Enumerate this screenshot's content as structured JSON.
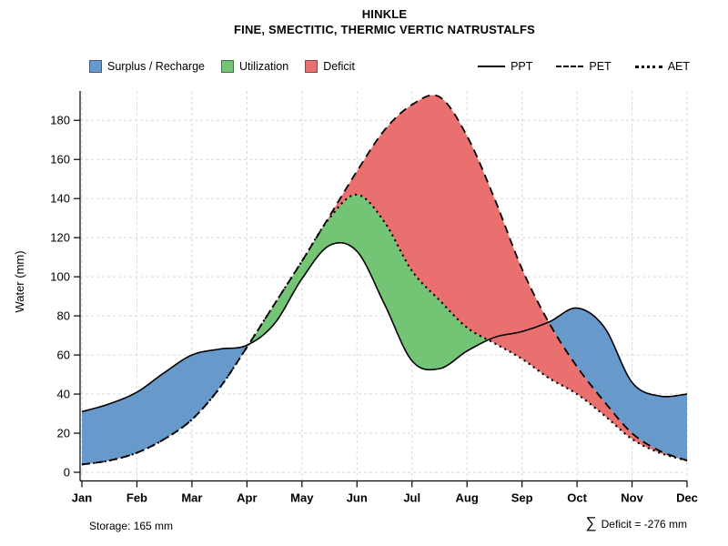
{
  "header": {
    "title": "HINKLE",
    "subtitle": "FINE, SMECTITIC, THERMIC VERTIC NATRUSTALFS"
  },
  "footer": {
    "storage": "Storage: 165 mm",
    "deficit_sigma": "∑",
    "deficit_text": "Deficit = -276 mm"
  },
  "chart_data": {
    "type": "area",
    "title": "HINKLE",
    "subtitle": "FINE, SMECTITIC, THERMIC VERTIC NATRUSTALFS",
    "ylabel": "Water (mm)",
    "ylim": [
      0,
      195
    ],
    "yticks": [
      0,
      20,
      40,
      60,
      80,
      100,
      120,
      140,
      160,
      180
    ],
    "months": [
      "Jan",
      "Feb",
      "Mar",
      "Apr",
      "May",
      "Jun",
      "Jul",
      "Aug",
      "Sep",
      "Oct",
      "Nov",
      "Dec"
    ],
    "x_months": [
      0,
      0.5,
      1,
      1.5,
      2,
      2.5,
      3,
      3.5,
      4,
      4.5,
      5,
      5.5,
      6,
      6.5,
      7,
      7.5,
      8,
      8.5,
      9,
      9.5,
      10,
      10.5,
      11
    ],
    "series": [
      {
        "name": "PPT",
        "style": "solid",
        "color": "#000000",
        "values": [
          31,
          35,
          41,
          51,
          60,
          63,
          65,
          76,
          99,
          116,
          113,
          86,
          57,
          53,
          62,
          69,
          72,
          77,
          84,
          74,
          46,
          39,
          40
        ]
      },
      {
        "name": "PET",
        "style": "dashed",
        "color": "#000000",
        "values": [
          4,
          6,
          10,
          17,
          27,
          43,
          64,
          86,
          108,
          131,
          154,
          175,
          188,
          192,
          172,
          140,
          104,
          76,
          54,
          36,
          20,
          11,
          6
        ]
      },
      {
        "name": "AET",
        "style": "dotted",
        "color": "#000000",
        "values": [
          4,
          6,
          10,
          17,
          27,
          43,
          64,
          86,
          108,
          130,
          142,
          128,
          103,
          88,
          74,
          66,
          58,
          48,
          40,
          29,
          17,
          10,
          6
        ]
      }
    ],
    "regions": [
      {
        "label": "Surplus / Recharge",
        "color": "#6899cb",
        "rule": "surplus"
      },
      {
        "label": "Utilization",
        "color": "#74c476",
        "rule": "utilization"
      },
      {
        "label": "Deficit",
        "color": "#e9706e",
        "rule": "deficit"
      }
    ],
    "grid_color": "#d6d6d6",
    "axis_color": "#000000",
    "legend_position": "top",
    "grid": true,
    "storage_mm": 165,
    "deficit_sum_mm": -276
  }
}
